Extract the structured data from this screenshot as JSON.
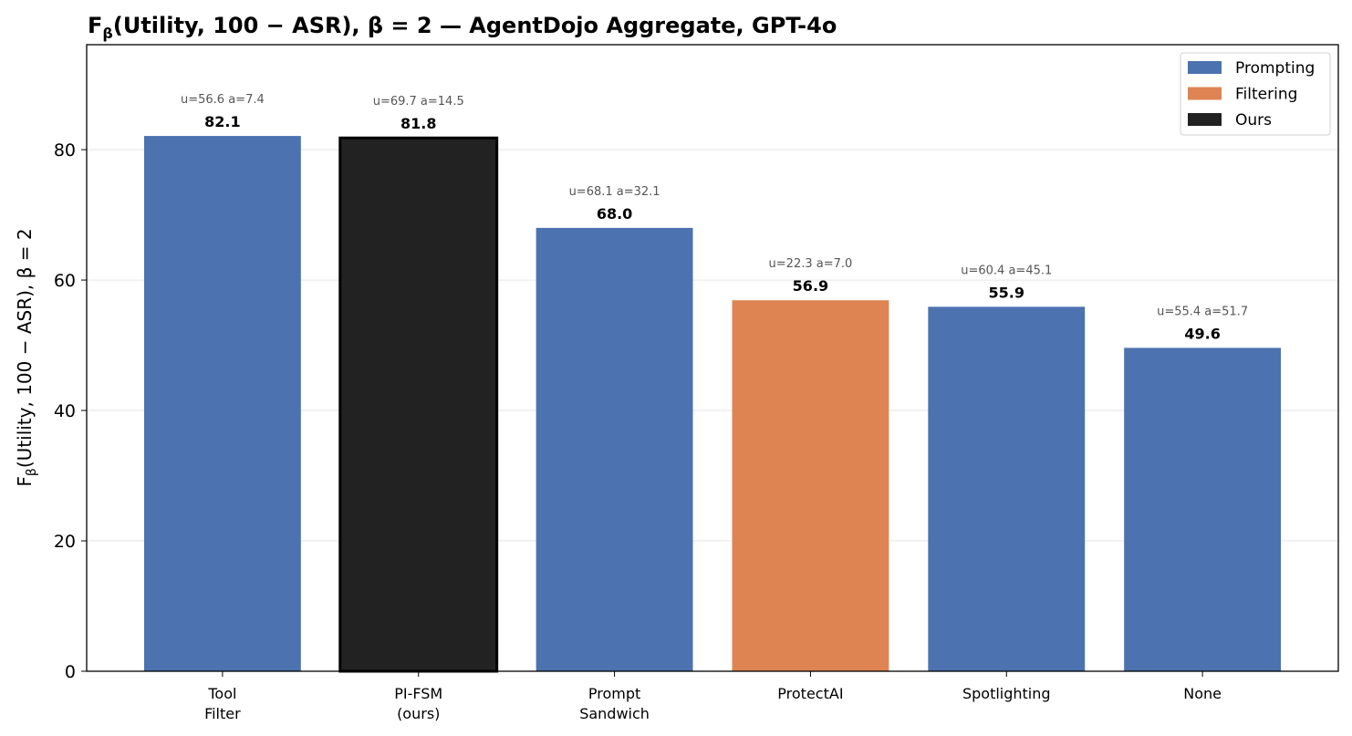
{
  "chart_data": {
    "type": "bar",
    "title": {
      "main": "F",
      "sub": "β",
      "rest": "(Utility, 100 − ASR), β = 2 — AgentDojo Aggregate, GPT-4o"
    },
    "ylabel": {
      "main": "F",
      "sub": "β",
      "rest": "(Utility, 100 − ASR),  β = 2"
    },
    "xlabel": "",
    "ylim": [
      0,
      96.1
    ],
    "yticks": [
      0,
      20,
      40,
      60,
      80
    ],
    "grid": "horizontal",
    "legend_position": "top-right",
    "legend": [
      {
        "label": "Prompting",
        "color": "#4c72b0"
      },
      {
        "label": "Filtering",
        "color": "#dd8452"
      },
      {
        "label": "Ours",
        "color": "#222222"
      }
    ],
    "categories": [
      [
        "Tool",
        "Filter"
      ],
      [
        "PI-FSM",
        "(ours)"
      ],
      [
        "Prompt",
        "Sandwich"
      ],
      [
        "ProtectAI"
      ],
      [
        "Spotlighting"
      ],
      [
        "None"
      ]
    ],
    "values": [
      82.1,
      81.8,
      68.0,
      56.9,
      55.9,
      49.6
    ],
    "value_labels": [
      "82.1",
      "81.8",
      "68.0",
      "56.9",
      "55.9",
      "49.6"
    ],
    "groups": [
      "Prompting",
      "Ours",
      "Prompting",
      "Filtering",
      "Prompting",
      "Prompting"
    ],
    "annotations": [
      "u=56.6  a=7.4",
      "u=69.7  a=14.5",
      "u=68.1  a=32.1",
      "u=22.3  a=7.0",
      "u=60.4  a=45.1",
      "u=55.4  a=51.7"
    ]
  }
}
